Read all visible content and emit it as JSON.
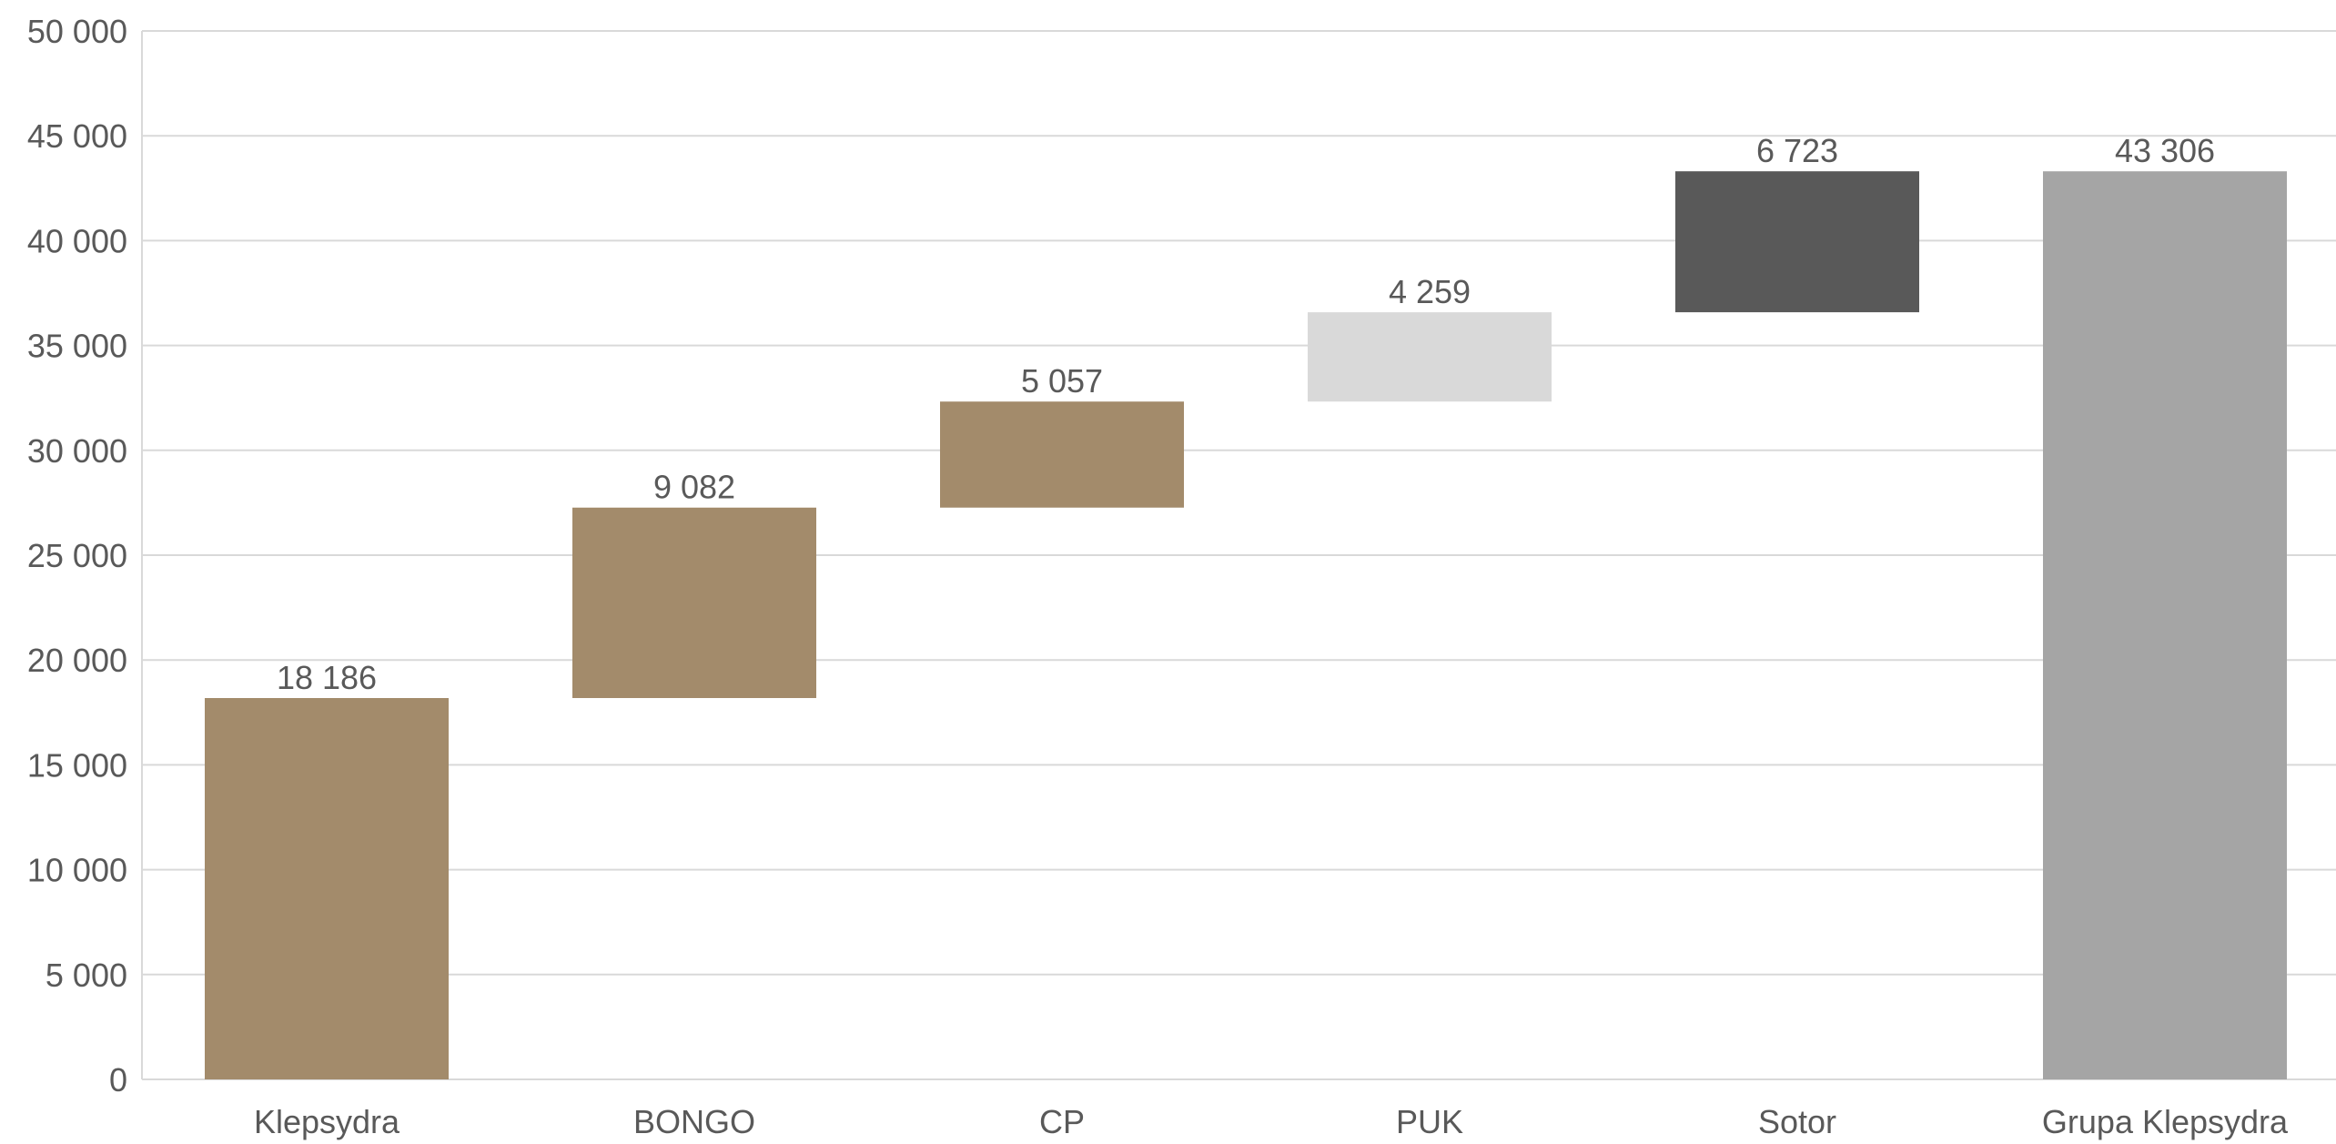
{
  "chart_data": {
    "type": "bar",
    "subtype": "waterfall",
    "categories": [
      "Klepsydra",
      "BONGO",
      "CP",
      "PUK",
      "Sotor",
      "Grupa Klepsydra"
    ],
    "values": [
      18186,
      9082,
      5057,
      4259,
      6723,
      43306
    ],
    "value_labels": [
      "18 186",
      "9 082",
      "5 057",
      "4 259",
      "6 723",
      "43 306"
    ],
    "bar_kind": [
      "increase",
      "increase",
      "increase",
      "increase",
      "increase",
      "total"
    ],
    "colors": [
      "#a38b6b",
      "#a38b6b",
      "#a38b6b",
      "#d9d9d9",
      "#595959",
      "#a5a5a5"
    ],
    "ylim": [
      0,
      50000
    ],
    "yticks": [
      0,
      5000,
      10000,
      15000,
      20000,
      25000,
      30000,
      35000,
      40000,
      45000,
      50000
    ],
    "ytick_labels": [
      "0",
      "5 000",
      "10 000",
      "15 000",
      "20 000",
      "25 000",
      "30 000",
      "35 000",
      "40 000",
      "45 000",
      "50 000"
    ],
    "grid": true,
    "title": "",
    "xlabel": "",
    "ylabel": ""
  }
}
